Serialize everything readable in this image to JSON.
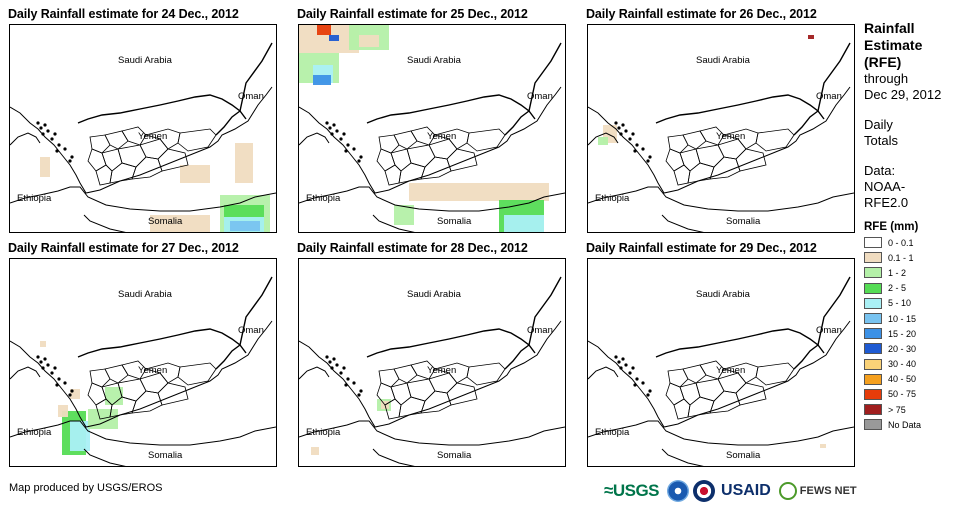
{
  "panels": [
    {
      "title": "Daily Rainfall estimate for 24 Dec., 2012",
      "day": 24
    },
    {
      "title": "Daily Rainfall estimate for 25 Dec., 2012",
      "day": 25
    },
    {
      "title": "Daily Rainfall estimate for 26 Dec., 2012",
      "day": 26
    },
    {
      "title": "Daily Rainfall estimate for 27 Dec., 2012",
      "day": 27
    },
    {
      "title": "Daily Rainfall estimate for 28 Dec., 2012",
      "day": 28
    },
    {
      "title": "Daily Rainfall estimate for 29 Dec., 2012",
      "day": 29
    }
  ],
  "map_labels": {
    "saudi": "Saudi Arabia",
    "oman": "Oman",
    "yemen": "Yemen",
    "ethiopia": "Ethiopia",
    "somalia": "Somalia"
  },
  "legend": {
    "title_line1": "Rainfall",
    "title_line2": "Estimate",
    "title_line3": "(RFE)",
    "through": "through",
    "date": "Dec 29, 2012",
    "daily1": "Daily",
    "daily2": "Totals",
    "data1": "Data:",
    "data2": "NOAA-",
    "data3": "RFE2.0",
    "rfe_header": "RFE (mm)",
    "classes": [
      {
        "label": "0 - 0.1",
        "color": "#ffffff"
      },
      {
        "label": "0.1 - 1",
        "color": "#f0dcc0"
      },
      {
        "label": "1 - 2",
        "color": "#b4f0a8"
      },
      {
        "label": "2 - 5",
        "color": "#55dc55"
      },
      {
        "label": "5 - 10",
        "color": "#aaf0f5"
      },
      {
        "label": "10 - 15",
        "color": "#78c3f0"
      },
      {
        "label": "15 - 20",
        "color": "#3c91e6"
      },
      {
        "label": "20 - 30",
        "color": "#1e5ad2"
      },
      {
        "label": "30 - 40",
        "color": "#fad278"
      },
      {
        "label": "40 - 50",
        "color": "#f5a01e"
      },
      {
        "label": "50 - 75",
        "color": "#e63c0a"
      },
      {
        "label": "> 75",
        "color": "#a01e1e"
      },
      {
        "label": "No Data",
        "color": "#999999"
      }
    ]
  },
  "footer": {
    "credit": "Map produced by USGS/EROS",
    "logos": {
      "usgs": "≈USGS",
      "usaid": "USAID",
      "fews": "FEWS NET"
    }
  }
}
